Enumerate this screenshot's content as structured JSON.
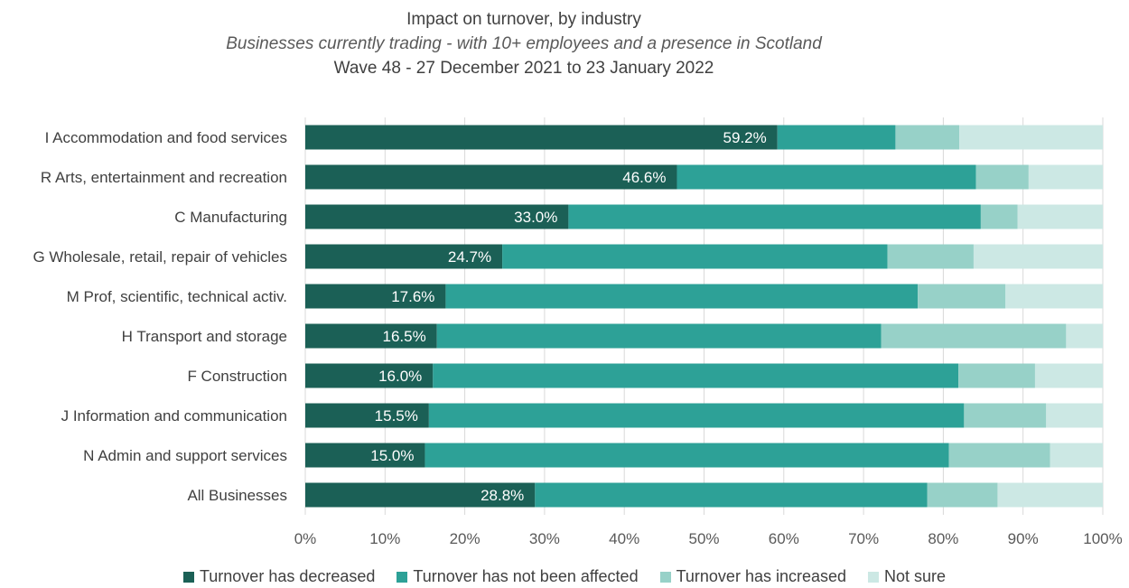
{
  "chart_data": {
    "type": "bar",
    "orientation": "horizontal",
    "stacked": "100%",
    "title": "Impact on turnover, by industry",
    "subtitle": "Businesses currently trading -  with 10+ employees and a presence in Scotland",
    "subtitle2": "Wave 48 - 27 December 2021 to 23 January 2022",
    "categories": [
      "I Accommodation and food services",
      "R Arts, entertainment and recreation",
      "C Manufacturing",
      "G Wholesale, retail, repair of vehicles",
      "M Prof, scientific, technical activ.",
      "H Transport and storage",
      "F Construction",
      "J Information and communication",
      "N Admin and support services",
      "All Businesses"
    ],
    "series": [
      {
        "name": "Turnover has decreased",
        "color": "#1b6056",
        "values": [
          59.2,
          46.6,
          33.0,
          24.7,
          17.6,
          16.5,
          16.0,
          15.5,
          15.0,
          28.8
        ]
      },
      {
        "name": "Turnover has not been affected",
        "color": "#2da197",
        "values": [
          14.8,
          37.5,
          51.7,
          48.3,
          59.2,
          55.7,
          65.9,
          67.1,
          65.7,
          49.2
        ]
      },
      {
        "name": "Turnover has increased",
        "color": "#97d1c8",
        "values": [
          8.0,
          6.6,
          4.6,
          10.8,
          11.0,
          23.2,
          9.6,
          10.3,
          12.7,
          8.8
        ]
      },
      {
        "name": "Not sure",
        "color": "#cce8e4",
        "values": [
          18.0,
          9.3,
          10.7,
          16.2,
          12.2,
          4.6,
          8.5,
          7.1,
          6.6,
          13.2
        ]
      }
    ],
    "data_labels": [
      "59.2%",
      "46.6%",
      "33.0%",
      "24.7%",
      "17.6%",
      "16.5%",
      "16.0%",
      "15.5%",
      "15.0%",
      "28.8%"
    ],
    "x_ticks": [
      "0%",
      "10%",
      "20%",
      "30%",
      "40%",
      "50%",
      "60%",
      "70%",
      "80%",
      "90%",
      "100%"
    ],
    "xlim": [
      0,
      100
    ],
    "grid": true,
    "legend_position": "bottom"
  }
}
